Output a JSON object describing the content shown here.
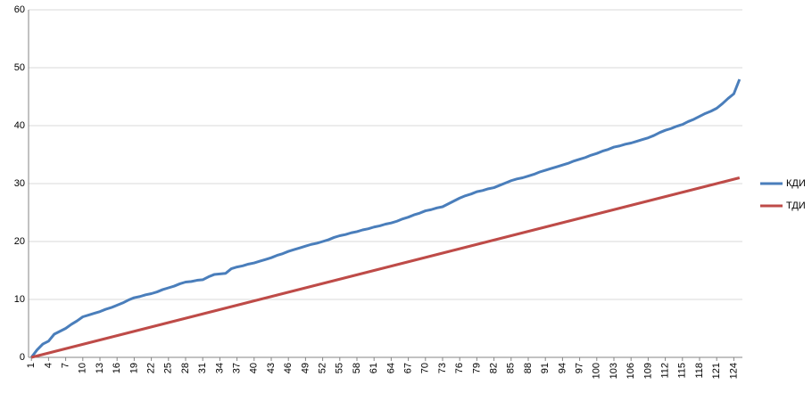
{
  "chart_data": {
    "type": "line",
    "categories": [
      1,
      null,
      null,
      4,
      null,
      null,
      7,
      null,
      null,
      10,
      null,
      null,
      13,
      null,
      null,
      16,
      null,
      null,
      19,
      null,
      null,
      22,
      null,
      null,
      25,
      null,
      null,
      28,
      null,
      null,
      31,
      null,
      null,
      34,
      null,
      null,
      37,
      null,
      null,
      40,
      null,
      null,
      43,
      null,
      null,
      46,
      null,
      null,
      49,
      null,
      null,
      52,
      null,
      null,
      55,
      null,
      null,
      58,
      null,
      null,
      61,
      null,
      null,
      64,
      null,
      null,
      67,
      null,
      null,
      70,
      null,
      null,
      73,
      null,
      null,
      76,
      null,
      null,
      79,
      null,
      null,
      82,
      null,
      null,
      85,
      null,
      null,
      88,
      null,
      null,
      91,
      null,
      null,
      94,
      null,
      null,
      97,
      null,
      null,
      100,
      null,
      null,
      103,
      null,
      null,
      106,
      null,
      null,
      109,
      null,
      null,
      112,
      null,
      null,
      115,
      null,
      null,
      118,
      null,
      null,
      121,
      null,
      null,
      124,
      null
    ],
    "series": [
      {
        "name": "КДИ",
        "color": "#4a7ebb",
        "values": [
          0,
          1.3,
          2.3,
          2.8,
          4,
          4.5,
          5,
          5.7,
          6.3,
          7,
          7.3,
          7.6,
          7.9,
          8.3,
          8.6,
          9,
          9.4,
          9.9,
          10.3,
          10.5,
          10.8,
          11,
          11.3,
          11.7,
          12,
          12.3,
          12.7,
          13,
          13.1,
          13.3,
          13.4,
          13.9,
          14.3,
          14.4,
          14.5,
          15.3,
          15.6,
          15.8,
          16.1,
          16.3,
          16.6,
          16.9,
          17.2,
          17.6,
          17.9,
          18.3,
          18.6,
          18.9,
          19.2,
          19.5,
          19.7,
          20,
          20.3,
          20.7,
          21,
          21.2,
          21.5,
          21.7,
          22,
          22.2,
          22.5,
          22.7,
          23,
          23.2,
          23.5,
          23.9,
          24.2,
          24.6,
          24.9,
          25.3,
          25.5,
          25.8,
          26,
          26.5,
          27,
          27.5,
          27.9,
          28.2,
          28.6,
          28.8,
          29.1,
          29.3,
          29.7,
          30.1,
          30.5,
          30.8,
          31,
          31.3,
          31.6,
          32,
          32.3,
          32.6,
          32.9,
          33.2,
          33.5,
          33.9,
          34.2,
          34.5,
          34.9,
          35.2,
          35.6,
          35.9,
          36.3,
          36.5,
          36.8,
          37,
          37.3,
          37.6,
          37.9,
          38.3,
          38.8,
          39.2,
          39.5,
          39.9,
          40.2,
          40.7,
          41.1,
          41.6,
          42.1,
          42.5,
          43,
          43.8,
          44.7,
          45.5,
          48
        ]
      },
      {
        "name": "ТДИ",
        "color": "#be4b48",
        "values": [
          0,
          0.25,
          0.5,
          0.75,
          1,
          1.25,
          1.5,
          1.75,
          2,
          2.25,
          2.5,
          2.75,
          3,
          3.25,
          3.5,
          3.75,
          4,
          4.25,
          4.5,
          4.75,
          5,
          5.25,
          5.5,
          5.75,
          6,
          6.25,
          6.5,
          6.75,
          7,
          7.25,
          7.5,
          7.75,
          8,
          8.25,
          8.5,
          8.75,
          9,
          9.25,
          9.5,
          9.75,
          10,
          10.25,
          10.5,
          10.75,
          11,
          11.25,
          11.5,
          11.75,
          12,
          12.25,
          12.5,
          12.75,
          13,
          13.25,
          13.5,
          13.75,
          14,
          14.25,
          14.5,
          14.75,
          15,
          15.25,
          15.5,
          15.75,
          16,
          16.25,
          16.5,
          16.75,
          17,
          17.25,
          17.5,
          17.75,
          18,
          18.25,
          18.5,
          18.75,
          19,
          19.25,
          19.5,
          19.75,
          20,
          20.25,
          20.5,
          20.75,
          21,
          21.25,
          21.5,
          21.75,
          22,
          22.25,
          22.5,
          22.75,
          23,
          23.25,
          23.5,
          23.75,
          24,
          24.25,
          24.5,
          24.75,
          25,
          25.25,
          25.5,
          25.75,
          26,
          26.25,
          26.5,
          26.75,
          27,
          27.25,
          27.5,
          27.75,
          28,
          28.25,
          28.5,
          28.75,
          29,
          29.25,
          29.5,
          29.75,
          30,
          30.25,
          30.5,
          30.75,
          31
        ]
      }
    ],
    "ylim": [
      0,
      60
    ],
    "yticks": [
      0,
      10,
      20,
      30,
      40,
      50,
      60
    ],
    "grid": true,
    "legend": "right"
  }
}
